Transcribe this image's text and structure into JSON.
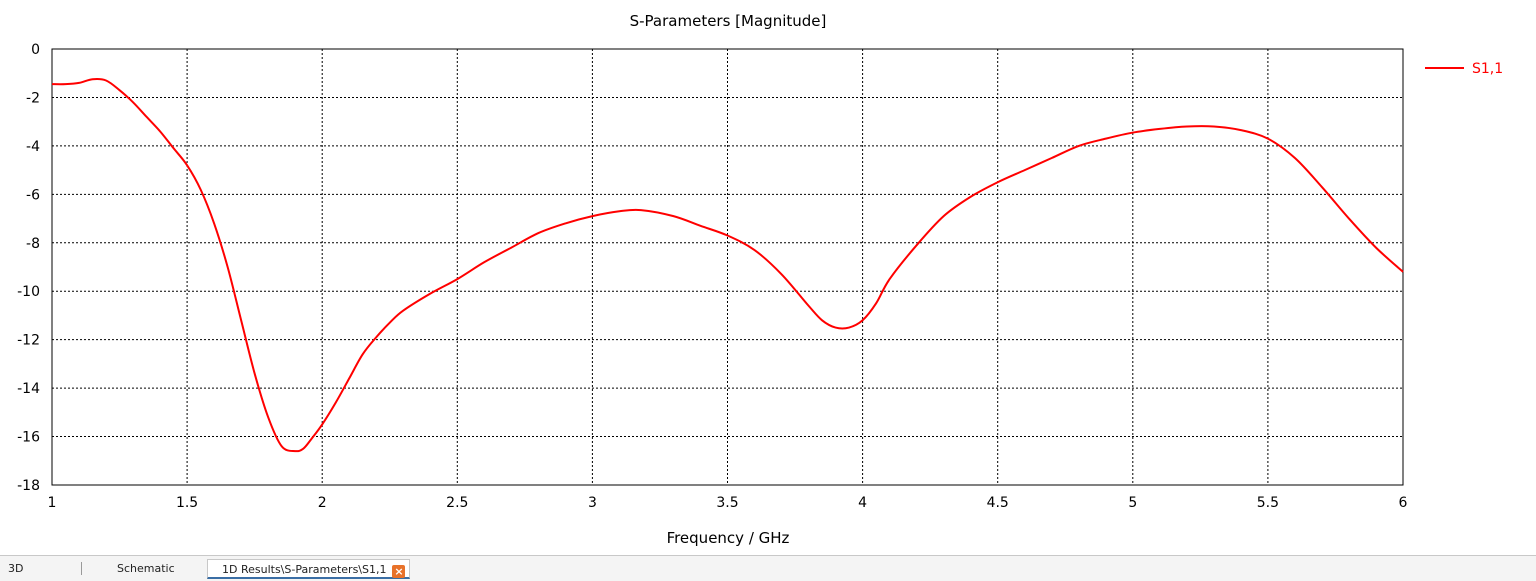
{
  "chart_data": {
    "type": "line",
    "title": "S-Parameters [Magnitude]",
    "xlabel": "Frequency / GHz",
    "ylabel": "",
    "xlim": [
      1,
      6
    ],
    "ylim": [
      -18,
      0
    ],
    "x_ticks": [
      "1",
      "1.5",
      "2",
      "2.5",
      "3",
      "3.5",
      "4",
      "4.5",
      "5",
      "5.5",
      "6"
    ],
    "y_ticks": [
      "0",
      "-2",
      "-4",
      "-6",
      "-8",
      "-10",
      "-12",
      "-14",
      "-16",
      "-18"
    ],
    "grid": true,
    "legend_position": "top-right",
    "series": [
      {
        "name": "S1,1",
        "color": "#ff0000",
        "x": [
          1.0,
          1.05,
          1.1,
          1.15,
          1.2,
          1.25,
          1.3,
          1.35,
          1.4,
          1.45,
          1.5,
          1.55,
          1.6,
          1.65,
          1.7,
          1.75,
          1.8,
          1.85,
          1.9,
          1.93,
          1.96,
          2.0,
          2.05,
          2.1,
          2.15,
          2.2,
          2.25,
          2.3,
          2.4,
          2.5,
          2.6,
          2.7,
          2.8,
          2.9,
          3.0,
          3.1,
          3.18,
          3.3,
          3.4,
          3.5,
          3.6,
          3.7,
          3.8,
          3.85,
          3.9,
          3.95,
          4.0,
          4.05,
          4.1,
          4.2,
          4.3,
          4.4,
          4.5,
          4.6,
          4.7,
          4.8,
          4.9,
          5.0,
          5.1,
          5.2,
          5.3,
          5.4,
          5.5,
          5.6,
          5.7,
          5.8,
          5.9,
          6.0
        ],
        "values": [
          -1.45,
          -1.45,
          -1.4,
          -1.25,
          -1.3,
          -1.7,
          -2.2,
          -2.8,
          -3.4,
          -4.1,
          -4.8,
          -5.8,
          -7.2,
          -9.0,
          -11.2,
          -13.4,
          -15.2,
          -16.4,
          -16.6,
          -16.5,
          -16.1,
          -15.5,
          -14.6,
          -13.6,
          -12.6,
          -11.9,
          -11.3,
          -10.8,
          -10.1,
          -9.5,
          -8.8,
          -8.2,
          -7.6,
          -7.2,
          -6.9,
          -6.7,
          -6.65,
          -6.9,
          -7.3,
          -7.7,
          -8.3,
          -9.3,
          -10.6,
          -11.2,
          -11.5,
          -11.5,
          -11.2,
          -10.5,
          -9.5,
          -8.1,
          -6.9,
          -6.1,
          -5.5,
          -5.0,
          -4.5,
          -4.0,
          -3.7,
          -3.45,
          -3.3,
          -3.2,
          -3.2,
          -3.35,
          -3.7,
          -4.5,
          -5.7,
          -7.0,
          -8.2,
          -9.2
        ]
      }
    ]
  },
  "tabs": {
    "tab1": "3D",
    "tab2": "Schematic",
    "tab3": "1D Results\\S-Parameters\\S1,1",
    "close_symbol": "×"
  }
}
